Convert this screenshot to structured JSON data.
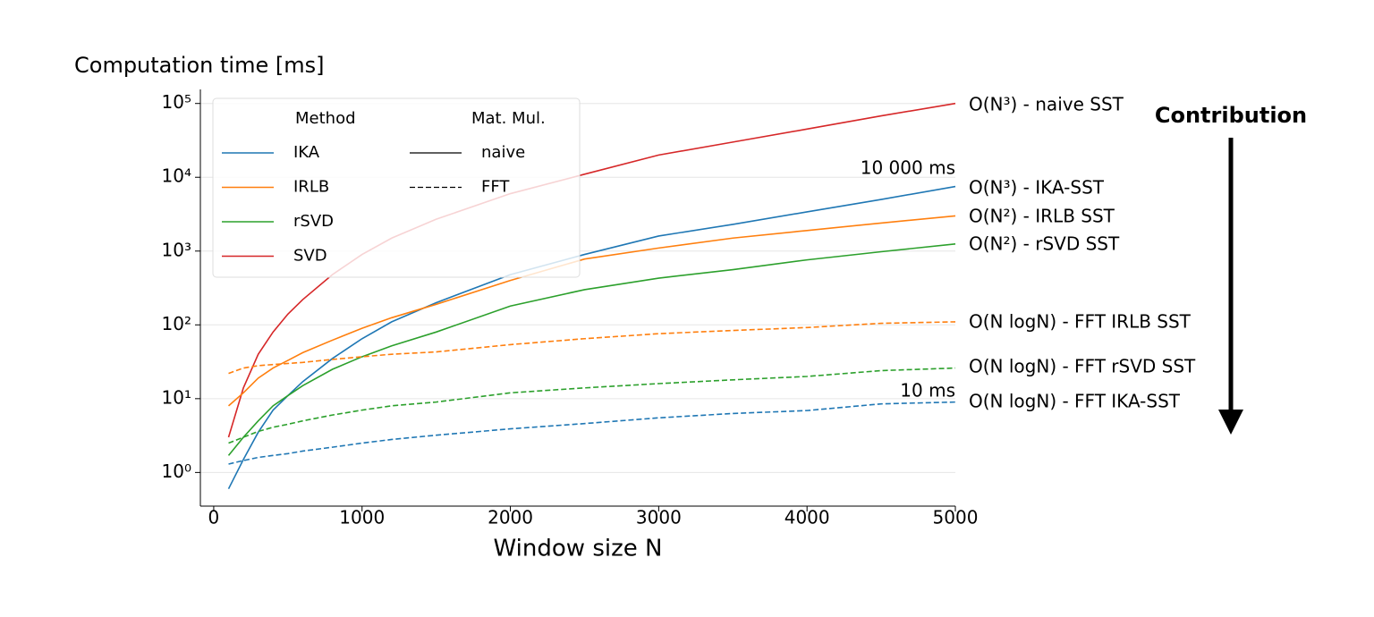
{
  "chart_data": {
    "type": "line",
    "y_label": "Computation time [ms]",
    "x_label": "Window size N",
    "log_y": true,
    "grid": true,
    "x": [
      100,
      200,
      300,
      400,
      500,
      600,
      800,
      1000,
      1200,
      1500,
      2000,
      2500,
      3000,
      3500,
      4000,
      4500,
      5000
    ],
    "series": [
      {
        "color": "#d62728",
        "dash": "solid",
        "values": [
          3,
          14,
          40,
          80,
          140,
          220,
          480,
          900,
          1500,
          2700,
          6000,
          11000,
          20000,
          30000,
          45000,
          68000,
          100000
        ]
      },
      {
        "color": "#1f77b4",
        "dash": "solid",
        "values": [
          0.6,
          1.5,
          3.5,
          7,
          11,
          17,
          35,
          65,
          110,
          200,
          480,
          900,
          1600,
          2300,
          3400,
          5000,
          7500
        ]
      },
      {
        "color": "#ff7f0e",
        "dash": "solid",
        "values": [
          8,
          12,
          19,
          26,
          33,
          42,
          62,
          90,
          125,
          190,
          400,
          780,
          1100,
          1500,
          1900,
          2400,
          3000
        ]
      },
      {
        "color": "#2ca02c",
        "dash": "solid",
        "values": [
          1.7,
          3,
          5,
          8,
          11,
          15,
          25,
          37,
          52,
          80,
          180,
          300,
          430,
          560,
          760,
          980,
          1250
        ]
      },
      {
        "color": "#ff7f0e",
        "dash": "dashed",
        "values": [
          22,
          26,
          28,
          29,
          30,
          31,
          34,
          37,
          40,
          43,
          54,
          65,
          76,
          84,
          92,
          105,
          110
        ]
      },
      {
        "color": "#2ca02c",
        "dash": "dashed",
        "values": [
          2.5,
          3,
          3.6,
          4.1,
          4.5,
          5,
          6,
          7,
          8,
          9,
          12,
          14,
          16,
          18,
          20,
          24,
          26
        ]
      },
      {
        "color": "#1f77b4",
        "dash": "dashed",
        "values": [
          1.3,
          1.45,
          1.6,
          1.7,
          1.8,
          1.95,
          2.2,
          2.5,
          2.8,
          3.2,
          3.9,
          4.6,
          5.5,
          6.3,
          6.9,
          8.5,
          9
        ]
      }
    ],
    "xlim": [
      -90,
      5000
    ],
    "xticks": [
      0,
      1000,
      2000,
      3000,
      4000,
      5000
    ],
    "ylim": [
      0.35,
      155000
    ],
    "yticks": [
      {
        "value": 1,
        "label": "10⁰"
      },
      {
        "value": 10,
        "label": "10¹"
      },
      {
        "value": 100,
        "label": "10²"
      },
      {
        "value": 1000,
        "label": "10³"
      },
      {
        "value": 10000,
        "label": "10⁴"
      },
      {
        "value": 100000,
        "label": "10⁵"
      }
    ],
    "legend": {
      "method_title": "Method",
      "methods": [
        {
          "name": "IKA",
          "color": "#1f77b4"
        },
        {
          "name": "IRLB",
          "color": "#ff7f0e"
        },
        {
          "name": "rSVD",
          "color": "#2ca02c"
        },
        {
          "name": "SVD",
          "color": "#d62728"
        }
      ],
      "style_title": "Mat. Mul.",
      "styles": [
        {
          "name": "naive",
          "dash": "solid"
        },
        {
          "name": "FFT",
          "dash": "dashed"
        }
      ]
    },
    "annotations": [
      "O(N³) - naive SST",
      "10 000 ms",
      "O(N³) - IKA-SST",
      "O(N²) - IRLB SST",
      "O(N²) - rSVD SST",
      "O(N logN) - FFT IRLB SST",
      "O(N logN) - FFT rSVD SST",
      "10 ms",
      "O(N logN) - FFT IKA-SST"
    ],
    "side_label": "Contribution"
  }
}
